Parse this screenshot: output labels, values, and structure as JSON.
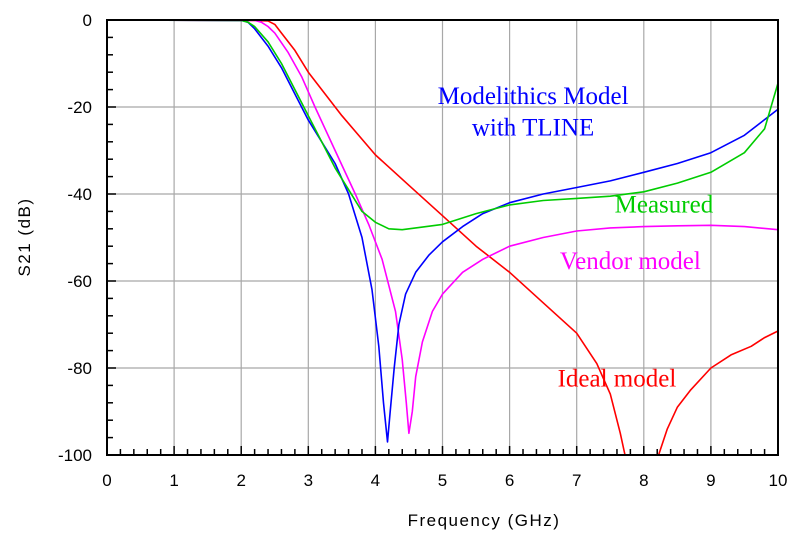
{
  "chart_data": {
    "type": "line",
    "title": "",
    "xlabel": "Frequency (GHz)",
    "ylabel": "S21 (dB)",
    "xlim": [
      0,
      10
    ],
    "ylim": [
      -100,
      0
    ],
    "x_ticks": [
      0,
      1,
      2,
      3,
      4,
      5,
      6,
      7,
      8,
      9,
      10
    ],
    "y_ticks": [
      0,
      -20,
      -40,
      -60,
      -80,
      -100
    ],
    "x_tick_labels": [
      "0",
      "1",
      "2",
      "3",
      "4",
      "5",
      "6",
      "7",
      "8",
      "9",
      "10"
    ],
    "y_tick_labels": [
      "0",
      "-20",
      "-40",
      "-60",
      "-80",
      "-100"
    ],
    "grid": true,
    "legend": "none",
    "series": [
      {
        "name": "Ideal model",
        "color": "#ff0000",
        "points": [
          [
            0,
            0
          ],
          [
            2.2,
            -0.1
          ],
          [
            2.4,
            -0.2
          ],
          [
            2.5,
            -1
          ],
          [
            2.6,
            -3
          ],
          [
            2.8,
            -7
          ],
          [
            3.0,
            -12
          ],
          [
            3.5,
            -22
          ],
          [
            4.0,
            -31
          ],
          [
            4.5,
            -38
          ],
          [
            5.0,
            -45
          ],
          [
            5.5,
            -52
          ],
          [
            6.0,
            -58
          ],
          [
            6.5,
            -65
          ],
          [
            7.0,
            -72
          ],
          [
            7.3,
            -79
          ],
          [
            7.5,
            -86
          ],
          [
            7.65,
            -95
          ],
          [
            7.72,
            -100
          ]
        ],
        "points2": [
          [
            8.22,
            -100
          ],
          [
            8.35,
            -94
          ],
          [
            8.5,
            -89
          ],
          [
            8.7,
            -85
          ],
          [
            9.0,
            -80
          ],
          [
            9.3,
            -77
          ],
          [
            9.6,
            -75
          ],
          [
            9.8,
            -73
          ],
          [
            10.0,
            -71.5
          ]
        ]
      },
      {
        "name": "Vendor model",
        "color": "#ff00ff",
        "points": [
          [
            0,
            0
          ],
          [
            2.2,
            -0.1
          ],
          [
            2.3,
            -0.5
          ],
          [
            2.4,
            -1.5
          ],
          [
            2.5,
            -3
          ],
          [
            2.7,
            -7.5
          ],
          [
            2.9,
            -13
          ],
          [
            3.1,
            -20
          ],
          [
            3.4,
            -30
          ],
          [
            3.7,
            -40
          ],
          [
            3.9,
            -47
          ],
          [
            4.1,
            -55
          ],
          [
            4.3,
            -67
          ],
          [
            4.4,
            -78
          ],
          [
            4.46,
            -88
          ],
          [
            4.5,
            -95
          ],
          [
            4.55,
            -90
          ],
          [
            4.6,
            -82
          ],
          [
            4.7,
            -74
          ],
          [
            4.85,
            -67
          ],
          [
            5.0,
            -63
          ],
          [
            5.3,
            -58
          ],
          [
            5.6,
            -55
          ],
          [
            6.0,
            -52
          ],
          [
            6.5,
            -50
          ],
          [
            7.0,
            -48.5
          ],
          [
            7.5,
            -47.8
          ],
          [
            8.0,
            -47.5
          ],
          [
            8.5,
            -47.3
          ],
          [
            9.0,
            -47.2
          ],
          [
            9.5,
            -47.5
          ],
          [
            10.0,
            -48.2
          ]
        ]
      },
      {
        "name": "Modelithics Model with TLINE",
        "color": "#0000ff",
        "points": [
          [
            0,
            0
          ],
          [
            2.0,
            -0.1
          ],
          [
            2.1,
            -0.5
          ],
          [
            2.2,
            -2
          ],
          [
            2.4,
            -6
          ],
          [
            2.6,
            -11
          ],
          [
            2.8,
            -17
          ],
          [
            3.0,
            -23
          ],
          [
            3.2,
            -28
          ],
          [
            3.4,
            -33
          ],
          [
            3.6,
            -40
          ],
          [
            3.8,
            -50
          ],
          [
            3.95,
            -62
          ],
          [
            4.05,
            -75
          ],
          [
            4.12,
            -88
          ],
          [
            4.18,
            -97
          ],
          [
            4.22,
            -90
          ],
          [
            4.28,
            -80
          ],
          [
            4.35,
            -70
          ],
          [
            4.45,
            -63
          ],
          [
            4.6,
            -58
          ],
          [
            4.8,
            -54
          ],
          [
            5.0,
            -51
          ],
          [
            5.3,
            -47.5
          ],
          [
            5.6,
            -44.5
          ],
          [
            6.0,
            -42
          ],
          [
            6.5,
            -40
          ],
          [
            7.0,
            -38.5
          ],
          [
            7.5,
            -37
          ],
          [
            8.0,
            -35
          ],
          [
            8.5,
            -33
          ],
          [
            9.0,
            -30.5
          ],
          [
            9.5,
            -26.5
          ],
          [
            10.0,
            -20.5
          ]
        ]
      },
      {
        "name": "Measured",
        "color": "#00cc00",
        "points": [
          [
            0,
            0
          ],
          [
            2.0,
            -0.1
          ],
          [
            2.1,
            -0.5
          ],
          [
            2.2,
            -1.5
          ],
          [
            2.4,
            -5
          ],
          [
            2.6,
            -10
          ],
          [
            2.8,
            -16
          ],
          [
            3.0,
            -22
          ],
          [
            3.2,
            -28
          ],
          [
            3.4,
            -34
          ],
          [
            3.6,
            -39
          ],
          [
            3.8,
            -44
          ],
          [
            4.0,
            -46.5
          ],
          [
            4.2,
            -48
          ],
          [
            4.4,
            -48.2
          ],
          [
            4.6,
            -47.8
          ],
          [
            5.0,
            -47
          ],
          [
            5.5,
            -44.5
          ],
          [
            6.0,
            -42.5
          ],
          [
            6.5,
            -41.5
          ],
          [
            7.0,
            -41
          ],
          [
            7.5,
            -40.5
          ],
          [
            8.0,
            -39.5
          ],
          [
            8.5,
            -37.5
          ],
          [
            9.0,
            -35
          ],
          [
            9.5,
            -30.5
          ],
          [
            9.8,
            -25
          ],
          [
            10.0,
            -14.5
          ]
        ]
      }
    ],
    "annotations": [
      {
        "text": "Modelithics Model",
        "color": "#0000ff",
        "x": 6.35,
        "y": -19.3,
        "anchor": "middle"
      },
      {
        "text": "with TLINE",
        "color": "#0000ff",
        "x": 6.35,
        "y": -26.5,
        "anchor": "middle"
      },
      {
        "text": "Measured",
        "color": "#00cc00",
        "x": 8.3,
        "y": -44.2,
        "anchor": "middle"
      },
      {
        "text": "Vendor model",
        "color": "#ff00ff",
        "x": 7.8,
        "y": -57.2,
        "anchor": "middle"
      },
      {
        "text": "Ideal model",
        "color": "#ff0000",
        "x": 7.6,
        "y": -84.2,
        "anchor": "middle"
      }
    ]
  }
}
